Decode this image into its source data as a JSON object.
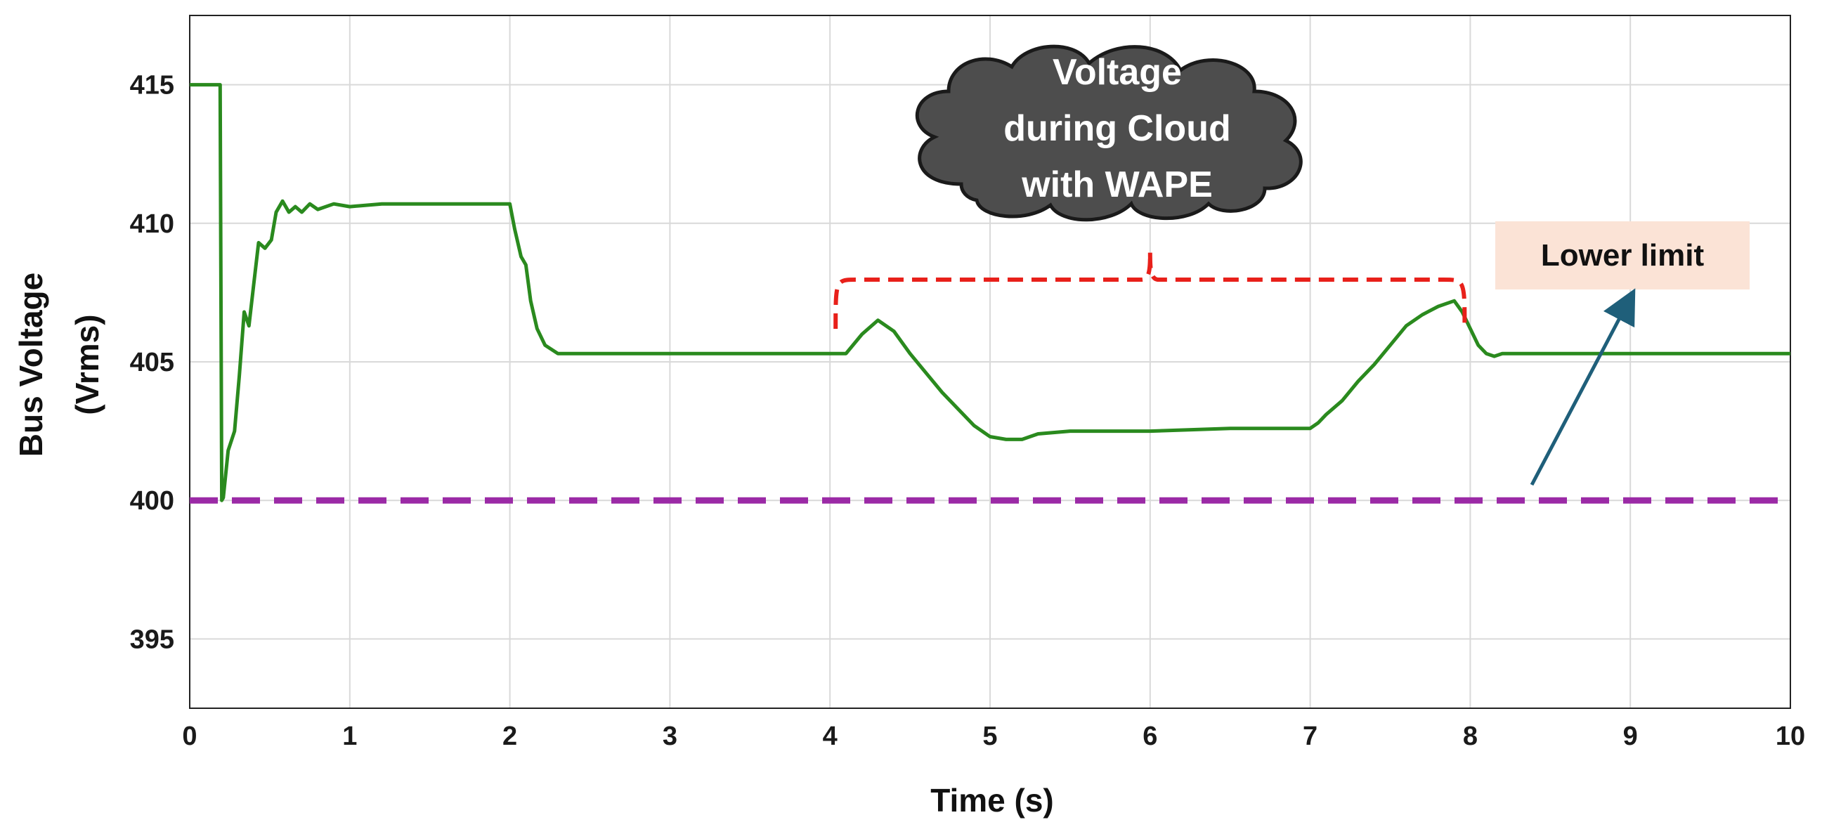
{
  "chart_data": {
    "type": "line",
    "xlabel": "Time (s)",
    "ylabel": [
      "Bus Voltage",
      "(Vrms)"
    ],
    "xlim": [
      0,
      10
    ],
    "ylim": [
      392.5,
      417.5
    ],
    "xticks": [
      0,
      1,
      2,
      3,
      4,
      5,
      6,
      7,
      8,
      9,
      10
    ],
    "yticks": [
      395,
      400,
      405,
      410,
      415
    ],
    "grid": true,
    "series": [
      {
        "color": "#2a8a1e",
        "x": [
          0,
          0.19,
          0.2,
          0.21,
          0.24,
          0.28,
          0.31,
          0.34,
          0.37,
          0.4,
          0.43,
          0.47,
          0.51,
          0.54,
          0.58,
          0.62,
          0.66,
          0.7,
          0.75,
          0.8,
          0.9,
          1.0,
          1.2,
          1.5,
          1.8,
          2.0,
          2.03,
          2.07,
          2.1,
          2.13,
          2.17,
          2.22,
          2.3,
          2.5,
          3.0,
          3.5,
          4.0,
          4.05,
          4.1,
          4.2,
          4.3,
          4.4,
          4.5,
          4.6,
          4.7,
          4.8,
          4.9,
          5.0,
          5.1,
          5.2,
          5.3,
          5.5,
          6.0,
          6.5,
          7.0,
          7.05,
          7.1,
          7.2,
          7.3,
          7.4,
          7.5,
          7.6,
          7.7,
          7.8,
          7.9,
          7.95,
          8.0,
          8.05,
          8.1,
          8.15,
          8.2,
          8.5,
          9.0,
          10.0
        ],
        "y": [
          415.0,
          415.0,
          400.0,
          400.1,
          401.8,
          402.5,
          404.5,
          406.8,
          406.3,
          407.8,
          409.3,
          409.1,
          409.4,
          410.4,
          410.8,
          410.4,
          410.6,
          410.4,
          410.7,
          410.5,
          410.7,
          410.6,
          410.7,
          410.7,
          410.7,
          410.7,
          409.8,
          408.8,
          408.5,
          407.2,
          406.2,
          405.6,
          405.3,
          405.3,
          405.3,
          405.3,
          405.3,
          405.3,
          405.3,
          406.0,
          406.5,
          406.1,
          405.3,
          404.6,
          403.9,
          403.3,
          402.7,
          402.3,
          402.2,
          402.2,
          402.4,
          402.5,
          402.5,
          402.6,
          402.6,
          402.8,
          403.1,
          403.6,
          404.3,
          404.9,
          405.6,
          406.3,
          406.7,
          407.0,
          407.2,
          406.8,
          406.2,
          405.6,
          405.3,
          405.2,
          405.3,
          405.3,
          405.3,
          405.3
        ]
      }
    ],
    "lower_limit": {
      "y": 400,
      "color": "#9b2aa6",
      "label": "Lower limit"
    },
    "annotation": {
      "text": [
        "Voltage",
        "during Cloud",
        "with WAPE"
      ],
      "bracket_color": "#e8201a",
      "bracket_x": [
        4.0,
        8.0
      ]
    }
  }
}
